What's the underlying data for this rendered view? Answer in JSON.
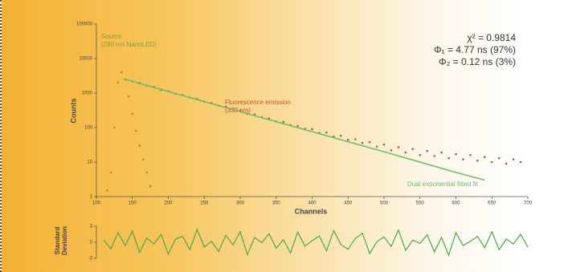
{
  "chart_data": [
    {
      "type": "scatter",
      "y_label": "Counts",
      "x_label": "Channels",
      "yscale": "log",
      "xlim": [
        100,
        700
      ],
      "xticks": [
        100,
        150,
        200,
        250,
        300,
        350,
        400,
        450,
        500,
        550,
        600,
        650,
        700
      ],
      "ylim": [
        1,
        100000
      ],
      "yticks": [
        1,
        10,
        100,
        1000,
        10000,
        100000
      ],
      "annotations": [
        "Source",
        "(280 nm NanoLED)",
        "Fluorescence emission",
        "(330 nm)",
        "Dual exponential fitted fit",
        "χ² = 0.9814",
        "Φ₁ = 4.77 ns (97%)",
        "Φ₂ = 0.12 ns (3%)"
      ],
      "series": [
        {
          "mode": "markers",
          "color": "#b25a4e",
          "x": [
            150,
            160,
            170,
            180,
            190,
            200,
            210,
            220,
            230,
            240,
            250,
            260,
            270,
            280,
            290,
            300,
            310,
            320,
            330,
            340,
            350,
            360,
            370,
            380,
            390,
            400,
            410,
            420,
            430,
            440,
            450,
            460,
            470,
            480,
            490,
            500,
            510,
            520,
            530,
            540,
            550,
            560,
            570,
            580,
            590,
            600,
            610,
            620,
            630,
            640,
            650,
            660,
            670,
            680,
            690
          ],
          "values": [
            2190,
            1960,
            1650,
            1490,
            1250,
            1140,
            960,
            870,
            740,
            670,
            560,
            510,
            430,
            400,
            330,
            310,
            250,
            240,
            200,
            185,
            150,
            145,
            118,
            112,
            92,
            90,
            70,
            72,
            55,
            58,
            44,
            46,
            36,
            38,
            28,
            32,
            22,
            27,
            19,
            24,
            16,
            21,
            15,
            19,
            13,
            17,
            12,
            16,
            11,
            14,
            10,
            13,
            9,
            12,
            10
          ]
        },
        {
          "mode": "markers",
          "color": "#8c9a32",
          "x": [
            115,
            120,
            125,
            130,
            135,
            140,
            145,
            150,
            155,
            160,
            165,
            170,
            175
          ],
          "values": [
            1.5,
            5,
            100,
            2000,
            4000,
            2500,
            800,
            250,
            80,
            30,
            12,
            5,
            2
          ]
        },
        {
          "mode": "line",
          "color": "#6cbf6a",
          "x": [
            140,
            200,
            300,
            400,
            500,
            600,
            640
          ],
          "values": [
            2500,
            1115,
            290,
            76,
            20,
            5,
            3
          ]
        }
      ]
    },
    {
      "type": "line",
      "y_label": "Standard Deviation",
      "xlim": [
        100,
        700
      ],
      "ylim": [
        -3,
        3
      ],
      "yticks": [
        -3,
        0,
        3
      ],
      "series": [
        {
          "mode": "line",
          "color": "#4fa84a",
          "x": [
            110,
            120,
            130,
            140,
            150,
            160,
            170,
            180,
            190,
            200,
            210,
            220,
            230,
            240,
            250,
            260,
            270,
            280,
            290,
            300,
            310,
            320,
            330,
            340,
            350,
            360,
            370,
            380,
            390,
            400,
            410,
            420,
            430,
            440,
            450,
            460,
            470,
            480,
            490,
            500,
            510,
            520,
            530,
            540,
            550,
            560,
            570,
            580,
            590,
            600,
            610,
            620,
            630,
            640,
            650,
            660,
            670,
            680,
            690,
            700
          ],
          "values": [
            0.4,
            -1.2,
            1.8,
            -0.6,
            2.1,
            -1.9,
            0.8,
            -0.3,
            1.5,
            -2.2,
            0.6,
            1.1,
            -1.4,
            2.4,
            -0.9,
            0.2,
            -1.7,
            1.3,
            -0.5,
            2.0,
            -2.3,
            0.9,
            -0.1,
            1.6,
            -1.1,
            0.5,
            -2.0,
            1.9,
            -0.7,
            0.3,
            1.2,
            -1.6,
            2.2,
            -0.4,
            -1.3,
            0.7,
            1.7,
            -2.1,
            0.1,
            1.0,
            -0.8,
            2.3,
            -1.5,
            0.4,
            -0.2,
            1.4,
            -1.8,
            0.9,
            -2.4,
            1.8,
            -0.6,
            0.2,
            1.1,
            -1.0,
            2.0,
            -1.4,
            0.6,
            -0.3,
            1.5,
            -0.9
          ]
        }
      ]
    }
  ]
}
